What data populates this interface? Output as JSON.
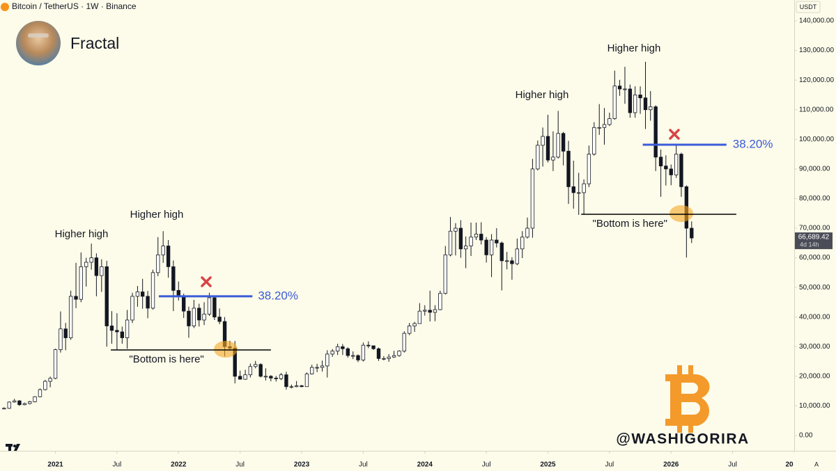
{
  "chart_data": {
    "type": "candlestick",
    "header": "Bitcoin / TetherUS · 1W · Binance",
    "author": "Fractal",
    "currency": "USDT",
    "watermark": "@WASHIGORIRA",
    "auto_button": "A",
    "up_color": "#ffffff",
    "down_color": "#131722",
    "wick_color": "#131722",
    "x": [
      2020.583,
      2020.625,
      2020.667,
      2020.708,
      2020.75,
      2020.792,
      2020.833,
      2020.875,
      2020.917,
      2020.958,
      2021,
      2021.042,
      2021.083,
      2021.125,
      2021.167,
      2021.208,
      2021.25,
      2021.292,
      2021.333,
      2021.375,
      2021.417,
      2021.458,
      2021.5,
      2021.542,
      2021.583,
      2021.625,
      2021.667,
      2021.708,
      2021.75,
      2021.792,
      2021.833,
      2021.875,
      2021.917,
      2021.958,
      2022,
      2022.042,
      2022.083,
      2022.125,
      2022.167,
      2022.208,
      2022.25,
      2022.292,
      2022.333,
      2022.375,
      2022.417,
      2022.458,
      2022.5,
      2022.542,
      2022.583,
      2022.625,
      2022.667,
      2022.708,
      2022.75,
      2022.792,
      2022.833,
      2022.875,
      2022.917,
      2022.958,
      2023,
      2023.042,
      2023.083,
      2023.125,
      2023.167,
      2023.208,
      2023.25,
      2023.292,
      2023.333,
      2023.375,
      2023.417,
      2023.458,
      2023.5,
      2023.542,
      2023.583,
      2023.625,
      2023.667,
      2023.708,
      2023.75,
      2023.792,
      2023.833,
      2023.875,
      2023.917,
      2023.958,
      2024,
      2024.042,
      2024.083,
      2024.125,
      2024.167,
      2024.208,
      2024.25,
      2024.292,
      2024.333,
      2024.375,
      2024.417,
      2024.458,
      2024.5,
      2024.542,
      2024.583,
      2024.625,
      2024.667,
      2024.708,
      2024.75,
      2024.792,
      2024.833,
      2024.875,
      2024.917,
      2024.958,
      2025,
      2025.042,
      2025.083,
      2025.125,
      2025.167,
      2025.208,
      2025.25,
      2025.292,
      2025.333,
      2025.375,
      2025.417,
      2025.458,
      2025.5,
      2025.542,
      2025.583,
      2025.625,
      2025.667,
      2025.708,
      2025.75,
      2025.792,
      2025.833,
      2025.875,
      2025.917,
      2025.958,
      2026,
      2026.042,
      2026.083,
      2026.125,
      2026.167
    ],
    "open": [
      9100,
      9200,
      11300,
      11700,
      10400,
      10800,
      11400,
      13100,
      15500,
      18300,
      19300,
      29000,
      36000,
      33000,
      47000,
      46000,
      57000,
      58500,
      60000,
      54000,
      57000,
      37000,
      35500,
      35000,
      33000,
      39000,
      47000,
      48500,
      47000,
      43000,
      55000,
      61000,
      64000,
      57000,
      49000,
      47000,
      42000,
      37000,
      43000,
      39000,
      41000,
      46500,
      40000,
      38500,
      30000,
      29500,
      20000,
      19000,
      20500,
      23300,
      24000,
      20000,
      20000,
      19400,
      19200,
      20500,
      16500,
      16500,
      16800,
      16500,
      20800,
      23000,
      23000,
      23500,
      27500,
      28500,
      30000,
      29300,
      27000,
      27000,
      25500,
      30500,
      30300,
      29300,
      26000,
      26000,
      26500,
      27000,
      28500,
      34500,
      37000,
      37800,
      42000,
      42300,
      41600,
      42500,
      48000,
      61000,
      69000,
      70000,
      63000,
      64000,
      67000,
      68000,
      66000,
      61000,
      66000,
      65000,
      59000,
      59000,
      58000,
      63000,
      67000,
      70000,
      90000,
      98000,
      101000,
      93000,
      94000,
      102000,
      96000,
      84000,
      82000,
      82000,
      85000,
      95000,
      104000,
      104000,
      105000,
      107000,
      118000,
      117000,
      117000,
      109000,
      115000,
      114000,
      110000,
      111000,
      94000,
      91000,
      90000,
      88000,
      95000,
      84000,
      70000
    ],
    "high": [
      9500,
      11500,
      12400,
      12000,
      11100,
      11700,
      13300,
      15900,
      18800,
      19900,
      29300,
      41900,
      38000,
      48900,
      58300,
      61800,
      60000,
      64800,
      61500,
      59500,
      59000,
      42000,
      41300,
      36800,
      42400,
      48200,
      50500,
      52900,
      48800,
      56000,
      67000,
      69000,
      66000,
      59100,
      52000,
      47900,
      43500,
      45800,
      44500,
      45000,
      48200,
      47200,
      42900,
      40000,
      32000,
      31900,
      21900,
      22200,
      24300,
      25200,
      24400,
      22700,
      20400,
      20100,
      21100,
      21500,
      17200,
      18400,
      17100,
      21300,
      23900,
      24200,
      25300,
      28800,
      29200,
      31000,
      30900,
      29800,
      28400,
      27400,
      31400,
      31800,
      30400,
      29700,
      26800,
      27500,
      28600,
      28800,
      35200,
      38000,
      38400,
      44700,
      44000,
      48900,
      44000,
      48900,
      64000,
      73800,
      71700,
      72700,
      67200,
      71900,
      71900,
      72000,
      67000,
      68000,
      70000,
      65500,
      62000,
      60200,
      66500,
      69000,
      73600,
      93400,
      99600,
      104000,
      108300,
      102700,
      109600,
      102500,
      99500,
      92800,
      88700,
      86500,
      97900,
      105800,
      111900,
      110600,
      109000,
      123200,
      120100,
      124500,
      118500,
      117900,
      117900,
      126200,
      116300,
      111500,
      96600,
      94600,
      91500,
      97900,
      95500,
      84500,
      72300
    ],
    "low": [
      8900,
      9000,
      11100,
      10000,
      10200,
      10500,
      11200,
      12900,
      15200,
      16300,
      19000,
      28000,
      28800,
      32300,
      43000,
      45000,
      50300,
      56000,
      47000,
      48500,
      30000,
      31000,
      28800,
      31000,
      29300,
      38000,
      43500,
      42800,
      39600,
      42500,
      53800,
      58300,
      53300,
      42000,
      45600,
      39700,
      33000,
      36300,
      36800,
      37300,
      40400,
      39000,
      37600,
      26700,
      28600,
      17600,
      18900,
      18800,
      19600,
      22700,
      19600,
      18600,
      18300,
      18200,
      18700,
      15500,
      15900,
      16300,
      16300,
      16500,
      20600,
      21400,
      21600,
      19600,
      26600,
      27200,
      27200,
      26300,
      25800,
      24800,
      25000,
      29500,
      28900,
      25200,
      25400,
      24900,
      26200,
      26600,
      28000,
      33900,
      35000,
      37700,
      40500,
      38500,
      38600,
      42300,
      47600,
      60500,
      60800,
      60000,
      56500,
      60600,
      66000,
      64500,
      58400,
      53500,
      63500,
      49000,
      56100,
      52600,
      57500,
      59900,
      66500,
      66800,
      89500,
      90800,
      92200,
      89300,
      93500,
      91200,
      78200,
      76600,
      74500,
      74600,
      83900,
      94500,
      101500,
      98200,
      104500,
      106600,
      114700,
      112000,
      107300,
      107300,
      108600,
      103500,
      106300,
      89300,
      80600,
      84400,
      84500,
      87000,
      80600,
      60100,
      65000
    ],
    "close": [
      9200,
      11300,
      11700,
      10400,
      10800,
      11400,
      13100,
      15500,
      18300,
      19300,
      29000,
      36000,
      33000,
      47000,
      46000,
      57000,
      58500,
      60000,
      54000,
      57000,
      37000,
      35500,
      35000,
      33000,
      39000,
      47000,
      48500,
      47000,
      43000,
      55000,
      61000,
      64000,
      57000,
      49000,
      47000,
      42000,
      37000,
      43000,
      39000,
      41000,
      46500,
      40000,
      38500,
      30000,
      29500,
      20000,
      19000,
      20500,
      23300,
      24000,
      20000,
      20000,
      19400,
      19200,
      20500,
      16500,
      16500,
      16800,
      16500,
      20800,
      23000,
      23000,
      23500,
      27500,
      28500,
      30000,
      29300,
      27000,
      27000,
      25500,
      30500,
      30300,
      29300,
      26000,
      26000,
      26500,
      27000,
      28500,
      34500,
      37000,
      37800,
      42000,
      42300,
      41600,
      42500,
      48000,
      61000,
      69000,
      70000,
      63000,
      64000,
      67000,
      68000,
      66000,
      61000,
      66000,
      65000,
      59000,
      59000,
      58000,
      63000,
      67000,
      70000,
      90000,
      98000,
      101000,
      93000,
      94000,
      102000,
      96000,
      84000,
      82000,
      82000,
      85000,
      95000,
      104000,
      104000,
      105000,
      107000,
      118000,
      117000,
      117000,
      109000,
      115000,
      114000,
      110000,
      111000,
      94000,
      91000,
      90000,
      88000,
      95000,
      84000,
      70000,
      66689.42
    ],
    "xlim": [
      2020.55,
      2027
    ],
    "xticks": [
      2021,
      {
        "value": 2021.5,
        "label": "Jul"
      },
      2022,
      {
        "value": 2022.5,
        "label": "Jul"
      },
      2023,
      {
        "value": 2023.5,
        "label": "Jul"
      },
      2024,
      {
        "value": 2024.5,
        "label": "Jul"
      },
      2025,
      {
        "value": 2025.5,
        "label": "Jul"
      },
      2026,
      {
        "value": 2026.5,
        "label": "Jul"
      },
      {
        "value": 2027,
        "label": "20"
      }
    ],
    "ylim": [
      0,
      140000
    ],
    "yticks": [
      {
        "value": 0,
        "label": "0.00"
      },
      {
        "value": 10000,
        "label": "10,000.00"
      },
      {
        "value": 20000,
        "label": "20,000.00"
      },
      {
        "value": 30000,
        "label": "30,000.00"
      },
      {
        "value": 40000,
        "label": "40,000.00"
      },
      {
        "value": 50000,
        "label": "50,000.00"
      },
      {
        "value": 60000,
        "label": "60,000.00"
      },
      {
        "value": 70000,
        "label": "70,000.00"
      },
      {
        "value": 80000,
        "label": "80,000.00"
      },
      {
        "value": 90000,
        "label": "90,000.00"
      },
      {
        "value": 100000,
        "label": "100,000.00"
      },
      {
        "value": 110000,
        "label": "110,000.00"
      },
      {
        "value": 120000,
        "label": "120,000.00"
      },
      {
        "value": 130000,
        "label": "130,000.00"
      },
      {
        "value": 140000,
        "label": "140,000.00"
      }
    ],
    "grid": false,
    "last_price": {
      "value": 66689.42,
      "label": "66,689.42"
    },
    "countdown": "4d 14h",
    "annotations": [
      "Higher high",
      "Higher high",
      "Higher high",
      "Higher high"
    ],
    "levels": [
      {
        "label": "38.20%",
        "value": 47000,
        "x": [
          2021.84,
          2022.6
        ],
        "color": "#3a5bd9"
      },
      {
        "label": "\"Bottom is here\"",
        "value": 28900,
        "x": [
          2021.45,
          2022.75
        ],
        "color": "#000000"
      },
      {
        "label": "38.20%",
        "value": 98200,
        "x": [
          2025.77,
          2026.45
        ],
        "color": "#3a5bd9"
      },
      {
        "label": "\"Bottom is here\"",
        "value": 74700,
        "x": [
          2025.27,
          2026.53
        ],
        "color": "#000000"
      }
    ]
  }
}
